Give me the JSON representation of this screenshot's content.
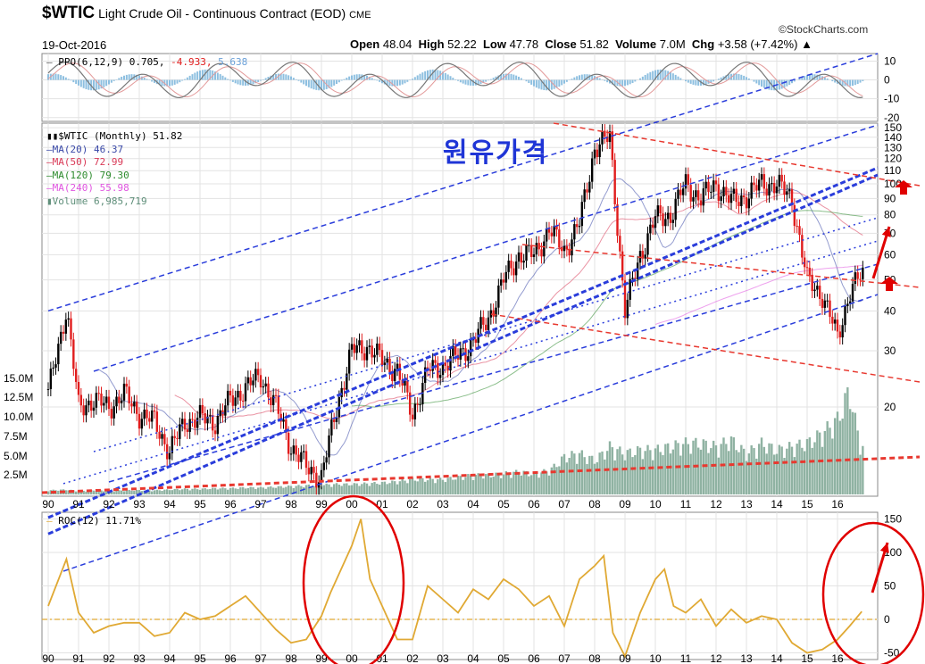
{
  "header": {
    "symbol": "$WTIC",
    "description": "Light Crude Oil - Continuous Contract (EOD)",
    "exchange": "CME",
    "date": "19-Oct-2016",
    "brand": "©StockCharts.com",
    "open_label": "Open",
    "open": "48.04",
    "high_label": "High",
    "high": "52.22",
    "low_label": "Low",
    "low": "47.78",
    "close_label": "Close",
    "close": "51.82",
    "volume_label": "Volume",
    "volume": "7.0M",
    "chg_label": "Chg",
    "chg": "+3.58 (+7.42%)"
  },
  "annotation_korean": "원유가격",
  "legend": {
    "ppo": [
      "PPO(6,12,9)",
      "0.705,",
      "-4.933,",
      "5.638"
    ],
    "price": "$WTIC (Monthly) 51.82",
    "ma20": "MA(20) 46.37",
    "ma50": "MA(50) 72.99",
    "ma120": "MA(120) 79.30",
    "ma240": "MA(240) 55.98",
    "volume": "Volume 6,985,719",
    "roc": "ROC(12) 11.71%"
  },
  "colors": {
    "up": "#000000",
    "down": "#e01c1c",
    "ma20": "#3a49a8",
    "ma50": "#d93a57",
    "ma120": "#2e8b2e",
    "ma240": "#e055e0",
    "volume": "#8fb2a2",
    "roc": "#e0a934",
    "blue_channel": "#2a3ddb",
    "red_channel": "#e8382f",
    "annotation_red": "#e00000",
    "ppo_hist": "#8dbfe0"
  },
  "chart_data": [
    {
      "panel": "ppo",
      "type": "line",
      "title": "PPO(6,12,9) 0.705, -4.933, 5.638",
      "ppo": 0.705,
      "signal": -4.933,
      "histogram": 5.638,
      "yticks": [
        10,
        0,
        -10,
        -20
      ],
      "ylim": [
        -22,
        14
      ]
    },
    {
      "panel": "price",
      "type": "candlestick",
      "title": "$WTIC (Monthly) 51.82",
      "yscale": "log",
      "yticks": [
        150,
        140,
        130,
        120,
        110,
        100,
        90,
        80,
        70,
        60,
        50,
        40,
        30,
        20
      ],
      "ylim": [
        10.5,
        155
      ],
      "volume_ticks": [
        "15.0M",
        "12.5M",
        "10.0M",
        "7.5M",
        "5.0M",
        "2.5M"
      ],
      "xticks": [
        "90",
        "91",
        "92",
        "93",
        "94",
        "95",
        "96",
        "97",
        "98",
        "99",
        "00",
        "01",
        "02",
        "03",
        "04",
        "05",
        "06",
        "07",
        "08",
        "09",
        "10",
        "11",
        "12",
        "13",
        "14",
        "15",
        "16"
      ],
      "x": [
        1990,
        1990.6,
        1991,
        1991.5,
        1992,
        1992.5,
        1993,
        1993.5,
        1994,
        1994.5,
        1995,
        1995.5,
        1996,
        1996.5,
        1997,
        1997.5,
        1998,
        1998.5,
        1999,
        1999.5,
        2000,
        2000.5,
        2001,
        2001.5,
        2002,
        2002.5,
        2003,
        2003.5,
        2004,
        2004.5,
        2005,
        2005.5,
        2006,
        2006.5,
        2007,
        2007.5,
        2008,
        2008.5,
        2009,
        2009.5,
        2010,
        2010.5,
        2011,
        2011.5,
        2012,
        2012.5,
        2013,
        2013.5,
        2014,
        2014.5,
        2015,
        2015.5,
        2016,
        2016.4,
        2016.8
      ],
      "close": [
        22,
        41,
        20,
        21,
        20,
        22,
        19,
        18,
        14.5,
        18,
        18.5,
        18,
        21,
        23,
        25,
        20,
        15,
        13,
        12,
        20,
        30,
        31,
        28,
        26,
        19,
        26,
        27,
        29,
        32,
        38,
        50,
        60,
        60,
        72,
        62,
        75,
        130,
        140,
        40,
        60,
        78,
        80,
        100,
        90,
        100,
        88,
        92,
        100,
        100,
        90,
        50,
        45,
        33,
        46,
        51.82
      ],
      "volume_millions": [
        0.6,
        0.7,
        0.5,
        0.6,
        0.5,
        0.6,
        0.6,
        0.6,
        0.7,
        0.8,
        0.8,
        0.9,
        0.9,
        1.0,
        1.0,
        1.1,
        1.2,
        1.3,
        1.4,
        1.5,
        1.5,
        1.6,
        1.7,
        1.9,
        2.2,
        2.2,
        2.2,
        2.5,
        2.8,
        2.8,
        3.0,
        3.3,
        3.0,
        3.5,
        5.5,
        6.0,
        5.0,
        7.0,
        6.0,
        6.5,
        6.5,
        7.0,
        7.5,
        7.5,
        7.0,
        8.0,
        6.0,
        7.5,
        6.5,
        7.0,
        7.5,
        9.0,
        11.0,
        15.5,
        7.0
      ],
      "series": [
        {
          "name": "MA(20)",
          "last": 46.37
        },
        {
          "name": "MA(50)",
          "last": 72.99
        },
        {
          "name": "MA(120)",
          "last": 79.3
        },
        {
          "name": "MA(240)",
          "last": 55.98
        },
        {
          "name": "Volume",
          "last": 6985719
        }
      ]
    },
    {
      "panel": "roc",
      "type": "line",
      "title": "ROC(12) 11.71%",
      "yticks": [
        150,
        100,
        50,
        0,
        -50
      ],
      "ylim": [
        -60,
        160
      ],
      "xticks": [
        "90",
        "91",
        "92",
        "93",
        "94",
        "95",
        "96",
        "97",
        "98",
        "99",
        "00",
        "01",
        "02",
        "03",
        "04",
        "05",
        "06",
        "07",
        "08",
        "09",
        "10",
        "11",
        "12",
        "13",
        "14",
        "15",
        "16"
      ],
      "x": [
        1990,
        1990.6,
        1991,
        1991.5,
        1992,
        1992.5,
        1993,
        1993.5,
        1994,
        1994.5,
        1995,
        1995.5,
        1996,
        1996.5,
        1997,
        1997.5,
        1998,
        1998.5,
        1999,
        1999.3,
        1999.6,
        2000,
        2000.3,
        2000.6,
        2001,
        2001.5,
        2002,
        2002.5,
        2003,
        2003.5,
        2004,
        2004.5,
        2005,
        2005.5,
        2006,
        2006.5,
        2007,
        2007.5,
        2008,
        2008.3,
        2008.6,
        2009,
        2009.5,
        2010,
        2010.3,
        2010.6,
        2011,
        2011.5,
        2012,
        2012.5,
        2013,
        2013.5,
        2014,
        2014.5,
        2015,
        2015.5,
        2016,
        2016.4,
        2016.8
      ],
      "values": [
        20,
        90,
        10,
        -20,
        -10,
        -5,
        -5,
        -25,
        -20,
        10,
        0,
        5,
        20,
        35,
        10,
        -15,
        -35,
        -30,
        5,
        40,
        70,
        110,
        150,
        60,
        20,
        -30,
        -30,
        50,
        30,
        10,
        45,
        30,
        60,
        45,
        20,
        35,
        -10,
        60,
        80,
        95,
        -20,
        -55,
        10,
        60,
        75,
        20,
        10,
        30,
        -10,
        15,
        -5,
        5,
        0,
        -35,
        -50,
        -45,
        -30,
        -10,
        11.71
      ]
    }
  ]
}
